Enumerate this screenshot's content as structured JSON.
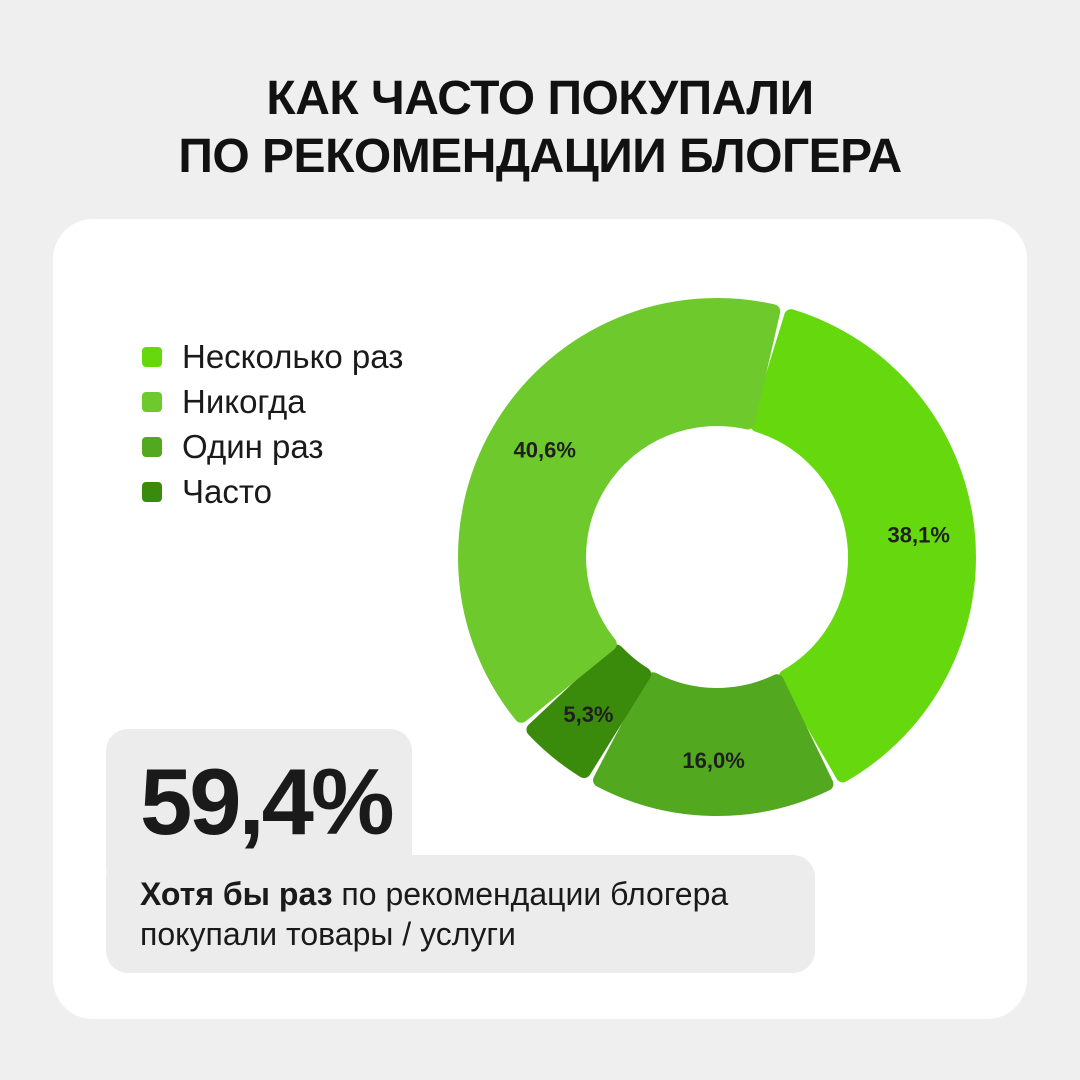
{
  "title": {
    "line1": "КАК ЧАСТО ПОКУПАЛИ",
    "line2": "ПО РЕКОМЕНДАЦИИ БЛОГЕРА"
  },
  "chart_data": {
    "type": "donut",
    "title": "КАК ЧАСТО ПОКУПАЛИ ПО РЕКОМЕНДАЦИИ БЛОГЕРА",
    "slices": [
      {
        "name": "Несколько раз",
        "value": 38.1,
        "label": "38,1%",
        "color": "#66d90e"
      },
      {
        "name": "Одинраз",
        "value": 16.0,
        "label": "16,0%",
        "color": "#52a81f"
      },
      {
        "name": "Часто",
        "value": 5.3,
        "label": "5,3%",
        "color": "#3a8a0c"
      },
      {
        "name": "Никогда",
        "value": 40.6,
        "label": "40,6%",
        "color": "#6ec92c"
      }
    ],
    "legend": [
      {
        "label": "Несколько раз",
        "color": "#66d90e"
      },
      {
        "label": "Никогда",
        "color": "#6ec92c"
      },
      {
        "label": "Один раз",
        "color": "#52a81f"
      },
      {
        "label": "Часто",
        "color": "#3a8a0c"
      }
    ],
    "legend_position": "left"
  },
  "stat": {
    "value": "59,4%",
    "caption_bold": "Хотя бы раз",
    "caption_rest": " по рекомендации блогера покупали товары / услуги"
  }
}
